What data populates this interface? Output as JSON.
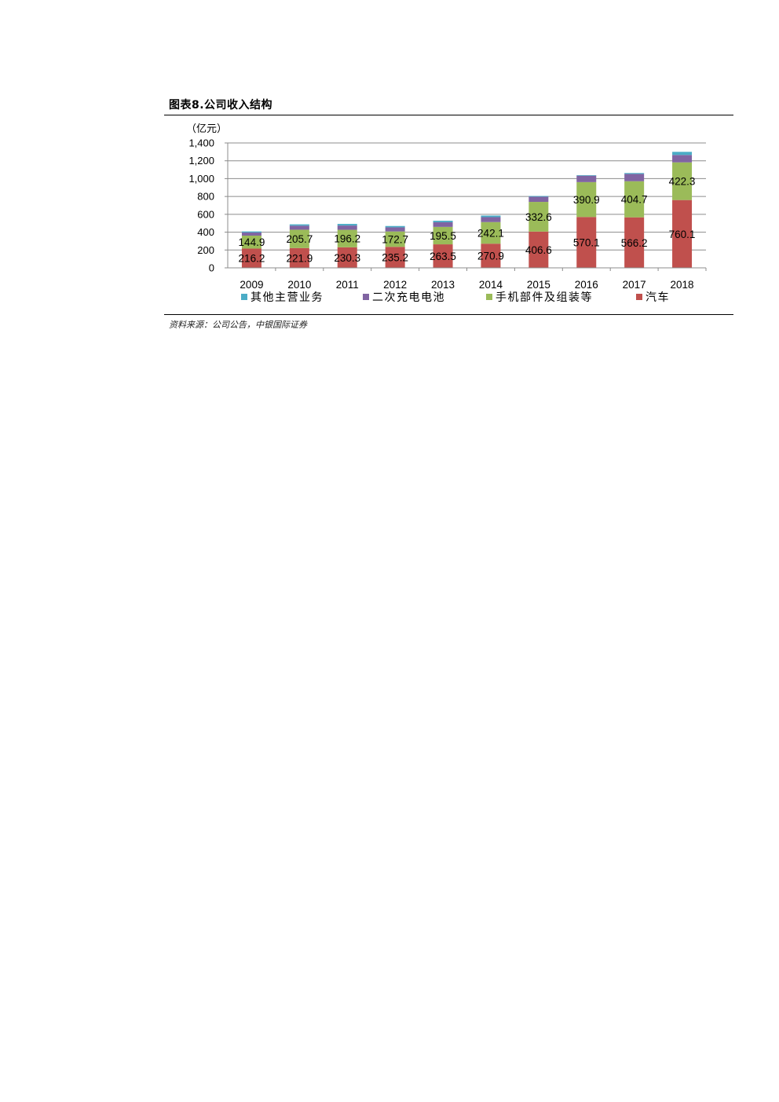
{
  "figure": {
    "title": "图表8.公司收入结构",
    "source": "资料来源：公司公告，中银国际证券"
  },
  "chart_data": {
    "type": "bar",
    "stacked": true,
    "unit_label": "（亿元）",
    "categories": [
      "2009",
      "2010",
      "2011",
      "2012",
      "2013",
      "2014",
      "2015",
      "2016",
      "2017",
      "2018"
    ],
    "ylim": [
      0,
      1400
    ],
    "yticks": [
      0,
      200,
      400,
      600,
      800,
      1000,
      1200,
      1400
    ],
    "ytick_labels": [
      "0",
      "200",
      "400",
      "600",
      "800",
      "1,000",
      "1,200",
      "1,400"
    ],
    "grid": true,
    "legend_position": "bottom",
    "series": [
      {
        "name": "汽车",
        "color": "#c0504d",
        "values": [
          216.2,
          221.9,
          230.3,
          235.2,
          263.5,
          270.9,
          406.6,
          570.1,
          566.2,
          760.1
        ],
        "labels": [
          "216.2",
          "221.9",
          "230.3",
          "235.2",
          "263.5",
          "270.9",
          "406.6",
          "570.1",
          "566.2",
          "760.1"
        ]
      },
      {
        "name": "手机部件及组装等",
        "color": "#9bbb59",
        "values": [
          144.9,
          205.7,
          196.2,
          172.7,
          195.5,
          242.1,
          332.6,
          390.9,
          404.7,
          422.3
        ],
        "labels": [
          "144.9",
          "205.7",
          "196.2",
          "172.7",
          "195.5",
          "242.1",
          "332.6",
          "390.9",
          "404.7",
          "422.3"
        ]
      },
      {
        "name": "二次充电电池",
        "color": "#8064a2",
        "values": [
          35,
          45,
          48,
          46,
          52,
          55,
          58,
          72,
          82,
          83
        ]
      },
      {
        "name": "其他主营业务",
        "color": "#4bacc6",
        "values": [
          12,
          15,
          18,
          15,
          17,
          18,
          8,
          6,
          10,
          35
        ]
      }
    ],
    "legend_order": [
      "其他主营业务",
      "二次充电电池",
      "手机部件及组装等",
      "汽车"
    ]
  }
}
